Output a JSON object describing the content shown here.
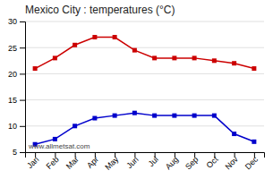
{
  "chart_data": {
    "type": "line",
    "title": "Mexico City : temperatures (°C)",
    "categories": [
      "Jan",
      "Feb",
      "Mar",
      "Apr",
      "May",
      "Jun",
      "Jul",
      "Aug",
      "Sep",
      "Oct",
      "Nov",
      "Dec"
    ],
    "series": [
      {
        "color": "#cc0000",
        "marker": "square",
        "values": [
          21,
          23,
          25.5,
          27,
          27,
          24.5,
          23,
          23,
          23,
          22.5,
          22,
          21
        ]
      },
      {
        "color": "#0000cc",
        "marker": "square",
        "values": [
          6.5,
          7.5,
          10,
          11.5,
          12,
          12.5,
          12,
          12,
          12,
          12,
          8.5,
          7
        ]
      }
    ],
    "ylim": [
      5,
      30
    ],
    "yticks": [
      5,
      10,
      15,
      20,
      25,
      30
    ],
    "grid": true,
    "annotations": [
      "www.allmetsat.com"
    ]
  }
}
